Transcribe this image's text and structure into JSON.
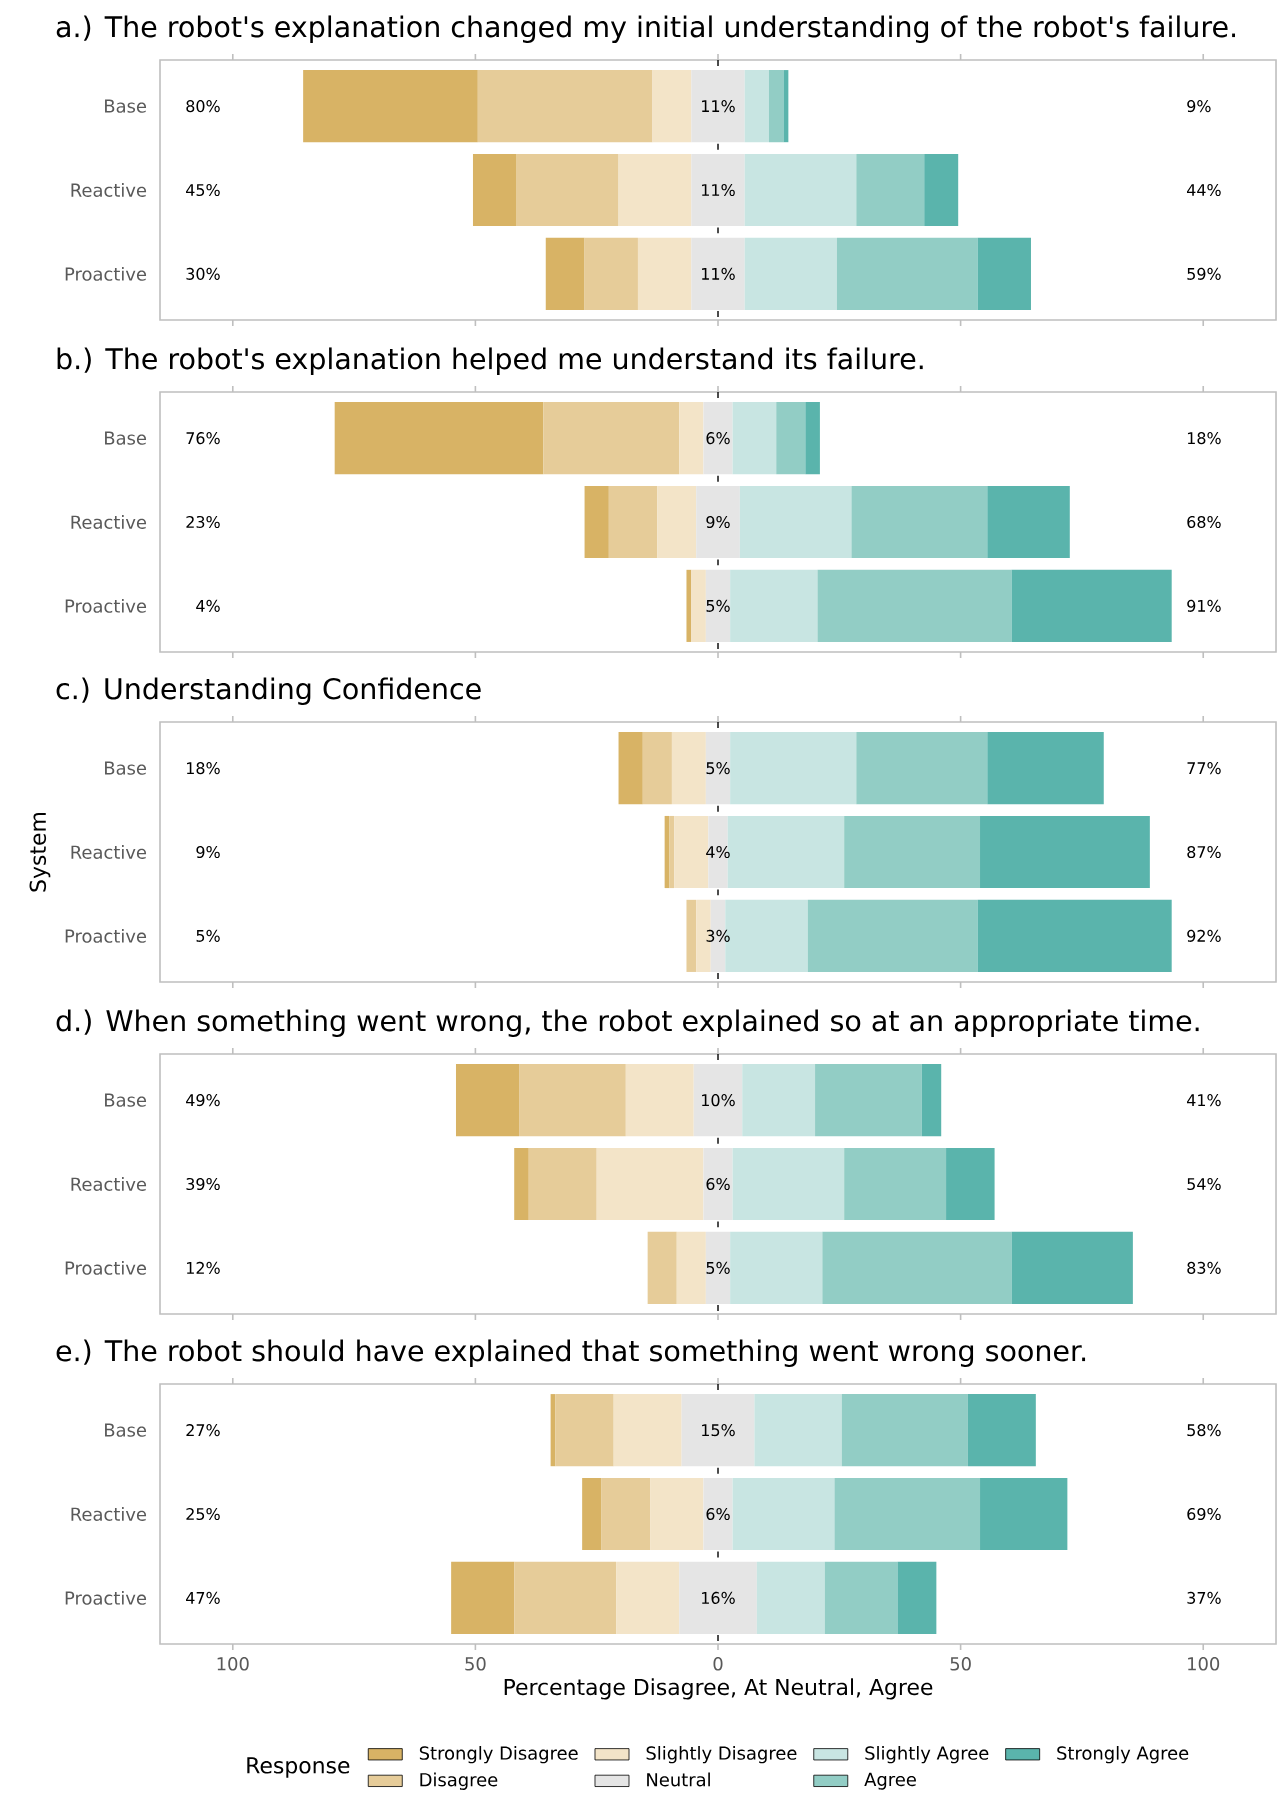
{
  "chart_data": [
    {
      "type": "bar",
      "orientation": "horizontal",
      "title": "a.) The robot's explanation changed my initial understanding of the robot's failure.",
      "categories": [
        "Base",
        "Reactive",
        "Proactive"
      ],
      "xlim": [
        -115,
        115
      ],
      "xticks": [
        {
          "value": -100,
          "label": null
        },
        {
          "value": -50,
          "label": null
        },
        {
          "value": 0,
          "label": null
        },
        {
          "value": 50,
          "label": null
        },
        {
          "value": 100,
          "label": null
        }
      ],
      "tick_labels": "y",
      "ref_lines": [
        {
          "axis": "x",
          "value": 0,
          "color": "#000000",
          "line_style": "dashed"
        }
      ],
      "annotations": [
        "80%",
        "45%",
        "30%",
        "9%",
        "44%",
        "59%"
      ],
      "series": [
        {
          "color": "#d8b365",
          "values": [
            36,
            9,
            8
          ],
          "base": [
            -85.5,
            -50.5,
            -35.5
          ]
        },
        {
          "color": "#e6cc99",
          "values": [
            36,
            21,
            11
          ],
          "base": [
            -49.5,
            -41.5,
            -27.5
          ]
        },
        {
          "color": "#f3e4c8",
          "values": [
            8,
            15,
            11
          ],
          "base": [
            -13.5,
            -20.5,
            -16.5
          ]
        },
        {
          "color": "#e5e5e5",
          "values": [
            11,
            11,
            11
          ],
          "base": [
            -5.5,
            -5.5,
            -5.5
          ],
          "value_labels": [
            "11%",
            "11%",
            "11%"
          ]
        },
        {
          "color": "#c8e5e2",
          "values": [
            5,
            23,
            19
          ],
          "base": [
            5.5,
            5.5,
            5.5
          ]
        },
        {
          "color": "#92cdc5",
          "values": [
            3,
            14,
            29
          ],
          "base": [
            10.5,
            28.5,
            24.5
          ]
        },
        {
          "color": "#5ab4ac",
          "values": [
            1,
            7,
            11
          ],
          "base": [
            13.5,
            42.5,
            53.5
          ]
        }
      ]
    },
    {
      "type": "bar",
      "orientation": "horizontal",
      "title": "b.) The robot's explanation helped me understand its failure.",
      "categories": [
        "Base",
        "Reactive",
        "Proactive"
      ],
      "xlim": [
        -115,
        115
      ],
      "xticks": [
        {
          "value": -100,
          "label": null
        },
        {
          "value": -50,
          "label": null
        },
        {
          "value": 0,
          "label": null
        },
        {
          "value": 50,
          "label": null
        },
        {
          "value": 100,
          "label": null
        }
      ],
      "tick_labels": "y",
      "ref_lines": [
        {
          "axis": "x",
          "value": 0,
          "color": "#000000",
          "line_style": "dashed"
        }
      ],
      "annotations": [
        "76%",
        "23%",
        "4%",
        "18%",
        "68%",
        "91%"
      ],
      "series": [
        {
          "color": "#d8b365",
          "values": [
            43,
            5,
            1
          ],
          "base": [
            -79,
            -27.5,
            -6.5
          ]
        },
        {
          "color": "#e6cc99",
          "values": [
            28,
            10,
            null
          ],
          "base": [
            -36,
            -22.5,
            null
          ]
        },
        {
          "color": "#f3e4c8",
          "values": [
            5,
            8,
            3
          ],
          "base": [
            -8,
            -12.5,
            -5.5
          ]
        },
        {
          "color": "#e5e5e5",
          "values": [
            6,
            9,
            5
          ],
          "base": [
            -3,
            -4.5,
            -2.5
          ],
          "value_labels": [
            "6%",
            "9%",
            "5%"
          ]
        },
        {
          "color": "#c8e5e2",
          "values": [
            9,
            23,
            18
          ],
          "base": [
            3,
            4.5,
            2.5
          ]
        },
        {
          "color": "#92cdc5",
          "values": [
            6,
            28,
            40
          ],
          "base": [
            12,
            27.5,
            20.5
          ]
        },
        {
          "color": "#5ab4ac",
          "values": [
            3,
            17,
            33
          ],
          "base": [
            18,
            55.5,
            60.5
          ]
        }
      ]
    },
    {
      "type": "bar",
      "orientation": "horizontal",
      "title": "c.) Understanding Confidence",
      "ylabel": "System",
      "categories": [
        "Base",
        "Reactive",
        "Proactive"
      ],
      "xlim": [
        -115,
        115
      ],
      "xticks": [
        {
          "value": -100,
          "label": null
        },
        {
          "value": -50,
          "label": null
        },
        {
          "value": 0,
          "label": null
        },
        {
          "value": 50,
          "label": null
        },
        {
          "value": 100,
          "label": null
        }
      ],
      "tick_labels": "y",
      "ref_lines": [
        {
          "axis": "x",
          "value": 0,
          "color": "#000000",
          "line_style": "dashed"
        }
      ],
      "annotations": [
        "18%",
        "9%",
        "5%",
        "77%",
        "87%",
        "92%"
      ],
      "series": [
        {
          "color": "#d8b365",
          "values": [
            5,
            1,
            null
          ],
          "base": [
            -20.5,
            -11,
            null
          ]
        },
        {
          "color": "#e6cc99",
          "values": [
            6,
            1,
            2
          ],
          "base": [
            -15.5,
            -10,
            -6.5
          ]
        },
        {
          "color": "#f3e4c8",
          "values": [
            7,
            7,
            3
          ],
          "base": [
            -9.5,
            -9,
            -4.5
          ]
        },
        {
          "color": "#e5e5e5",
          "values": [
            5,
            4,
            3
          ],
          "base": [
            -2.5,
            -2,
            -1.5
          ],
          "value_labels": [
            "5%",
            "4%",
            "3%"
          ]
        },
        {
          "color": "#c8e5e2",
          "values": [
            26,
            24,
            17
          ],
          "base": [
            2.5,
            2,
            1.5
          ]
        },
        {
          "color": "#92cdc5",
          "values": [
            27,
            28,
            35
          ],
          "base": [
            28.5,
            26,
            18.5
          ]
        },
        {
          "color": "#5ab4ac",
          "values": [
            24,
            35,
            40
          ],
          "base": [
            55.5,
            54,
            53.5
          ]
        }
      ]
    },
    {
      "type": "bar",
      "orientation": "horizontal",
      "title": "d.) When something went wrong, the robot explained so at an appropriate time.",
      "categories": [
        "Base",
        "Reactive",
        "Proactive"
      ],
      "xlim": [
        -115,
        115
      ],
      "xticks": [
        {
          "value": -100,
          "label": null
        },
        {
          "value": -50,
          "label": null
        },
        {
          "value": 0,
          "label": null
        },
        {
          "value": 50,
          "label": null
        },
        {
          "value": 100,
          "label": null
        }
      ],
      "tick_labels": "y",
      "ref_lines": [
        {
          "axis": "x",
          "value": 0,
          "color": "#000000",
          "line_style": "dashed"
        }
      ],
      "annotations": [
        "49%",
        "39%",
        "12%",
        "41%",
        "54%",
        "83%"
      ],
      "series": [
        {
          "color": "#d8b365",
          "values": [
            13,
            3,
            null
          ],
          "base": [
            -54,
            -42,
            null
          ]
        },
        {
          "color": "#e6cc99",
          "values": [
            22,
            14,
            6
          ],
          "base": [
            -41,
            -39,
            -14.5
          ]
        },
        {
          "color": "#f3e4c8",
          "values": [
            14,
            22,
            6
          ],
          "base": [
            -19,
            -25,
            -8.5
          ]
        },
        {
          "color": "#e5e5e5",
          "values": [
            10,
            6,
            5
          ],
          "base": [
            -5,
            -3,
            -2.5
          ],
          "value_labels": [
            "10%",
            "6%",
            "5%"
          ]
        },
        {
          "color": "#c8e5e2",
          "values": [
            15,
            23,
            19
          ],
          "base": [
            5,
            3,
            2.5
          ]
        },
        {
          "color": "#92cdc5",
          "values": [
            22,
            21,
            39
          ],
          "base": [
            20,
            26,
            21.5
          ]
        },
        {
          "color": "#5ab4ac",
          "values": [
            4,
            10,
            25
          ],
          "base": [
            42,
            47,
            60.5
          ]
        }
      ]
    },
    {
      "type": "bar",
      "orientation": "horizontal",
      "title": "e.) The robot should have explained that something went wrong sooner.",
      "xlabel": "Percentage Disagree, At Neutral, Agree",
      "legend": "bottom",
      "legend_title": "Response",
      "categories": [
        "Base",
        "Reactive",
        "Proactive"
      ],
      "xlim": [
        -115,
        115
      ],
      "xticks": [
        {
          "value": -100,
          "label": "100"
        },
        {
          "value": -50,
          "label": "50"
        },
        0,
        50,
        100
      ],
      "ref_lines": [
        {
          "axis": "x",
          "value": 0,
          "color": "#000000",
          "line_style": "dashed"
        }
      ],
      "annotations": [
        "27%",
        "25%",
        "47%",
        "58%",
        "69%",
        "37%"
      ],
      "series": [
        {
          "name": "Strongly Disagree",
          "color": "#d8b365",
          "values": [
            1,
            4,
            13
          ],
          "base": [
            -34.5,
            -28,
            -55
          ]
        },
        {
          "name": "Disagree",
          "color": "#e6cc99",
          "values": [
            12,
            10,
            21
          ],
          "base": [
            -33.5,
            -24,
            -42
          ]
        },
        {
          "name": "Slightly Disagree",
          "color": "#f3e4c8",
          "values": [
            14,
            11,
            13
          ],
          "base": [
            -21.5,
            -14,
            -21
          ]
        },
        {
          "name": "Neutral",
          "color": "#e5e5e5",
          "values": [
            15,
            6,
            16
          ],
          "base": [
            -7.5,
            -3,
            -8
          ],
          "value_labels": [
            "15%",
            "6%",
            "16%"
          ]
        },
        {
          "name": "Slightly Agree",
          "color": "#c8e5e2",
          "values": [
            18,
            21,
            14
          ],
          "base": [
            7.5,
            3,
            8
          ]
        },
        {
          "name": "Agree",
          "color": "#92cdc5",
          "values": [
            26,
            30,
            15
          ],
          "base": [
            25.5,
            24,
            22
          ]
        },
        {
          "name": "Strongly Agree",
          "color": "#5ab4ac",
          "values": [
            14,
            18,
            8
          ],
          "base": [
            51.5,
            54,
            37
          ]
        }
      ]
    }
  ]
}
